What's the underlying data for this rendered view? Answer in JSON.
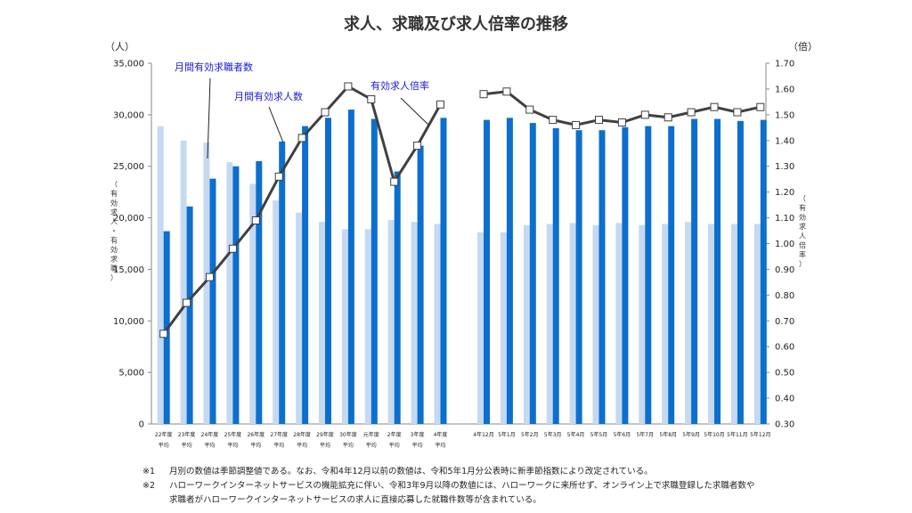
{
  "chart_data": {
    "type": "bar",
    "title": "求人、求職及び求人倍率の推移",
    "y_left": {
      "unit": "（人）",
      "label": "（有効求人・有効求職）",
      "ylim": [
        0,
        35000
      ],
      "ticks": [
        "0",
        "5,000",
        "10,000",
        "15,000",
        "20,000",
        "25,000",
        "30,000",
        "35,000"
      ]
    },
    "y_right": {
      "unit": "（倍）",
      "label": "（有効求人倍率）",
      "ylim": [
        0.3,
        1.7
      ],
      "ticks": [
        "0.30",
        "0.40",
        "0.50",
        "0.60",
        "0.70",
        "0.80",
        "0.90",
        "1.00",
        "1.10",
        "1.20",
        "1.30",
        "1.40",
        "1.50",
        "1.60",
        "1.70"
      ]
    },
    "annual_categories": [
      {
        "l1": "22年度",
        "l2": "平均"
      },
      {
        "l1": "23年度",
        "l2": "平均"
      },
      {
        "l1": "24年度",
        "l2": "平均"
      },
      {
        "l1": "25年度",
        "l2": "平均"
      },
      {
        "l1": "26年度",
        "l2": "平均"
      },
      {
        "l1": "27年度",
        "l2": "平均"
      },
      {
        "l1": "28年度",
        "l2": "平均"
      },
      {
        "l1": "29年度",
        "l2": "平均"
      },
      {
        "l1": "30年度",
        "l2": "平均"
      },
      {
        "l1": "元年度",
        "l2": "平均"
      },
      {
        "l1": "2年度",
        "l2": "平均"
      },
      {
        "l1": "3年度",
        "l2": "平均"
      },
      {
        "l1": "4年度",
        "l2": "平均"
      }
    ],
    "monthly_categories": [
      "4年12月",
      "5年1月",
      "5年2月",
      "5年3月",
      "5年4月",
      "5年5月",
      "5年6月",
      "5年7月",
      "5年8月",
      "5年9月",
      "5年10月",
      "5年11月",
      "5年12月"
    ],
    "series": [
      {
        "name": "月間有効求職者数",
        "color": "#c5d9f1",
        "annual": [
          28900,
          27500,
          27300,
          25400,
          23300,
          21700,
          20500,
          19600,
          18900,
          18900,
          19800,
          19600,
          19400
        ],
        "monthly": [
          18600,
          18600,
          19300,
          19400,
          19500,
          19300,
          19500,
          19300,
          19400,
          19600,
          19400,
          19400,
          19400
        ]
      },
      {
        "name": "月間有効求人数",
        "color": "#0b6fce",
        "annual": [
          18700,
          21100,
          23800,
          25000,
          25500,
          27400,
          28900,
          29700,
          30500,
          29600,
          24500,
          27000,
          29700
        ],
        "monthly": [
          29500,
          29700,
          29200,
          28700,
          28500,
          28500,
          28800,
          28900,
          28900,
          29600,
          29600,
          29400,
          29500
        ]
      },
      {
        "name": "有効求人倍率",
        "color": "#404040",
        "annual": [
          0.65,
          0.77,
          0.87,
          0.98,
          1.09,
          1.26,
          1.41,
          1.51,
          1.61,
          1.56,
          1.24,
          1.38,
          1.54
        ],
        "monthly": [
          1.58,
          1.59,
          1.52,
          1.48,
          1.46,
          1.48,
          1.47,
          1.5,
          1.49,
          1.51,
          1.53,
          1.51,
          1.53
        ]
      }
    ]
  },
  "notes": [
    {
      "mark": "※1",
      "text": "月別の数値は季節調整値である。なお、令和4年12月以前の数値は、令和5年1月分公表時に新季節指数により改定されている。"
    },
    {
      "mark": "※2",
      "text": "ハローワークインターネットサービスの機能拡充に伴い、令和3年9月以降の数値には、ハローワークに来所せず、オンライン上で求職登録した求職者数や"
    },
    {
      "mark": "",
      "text": "求職者がハローワークインターネットサービスの求人に直接応募した就職件数等が含まれている。"
    }
  ]
}
